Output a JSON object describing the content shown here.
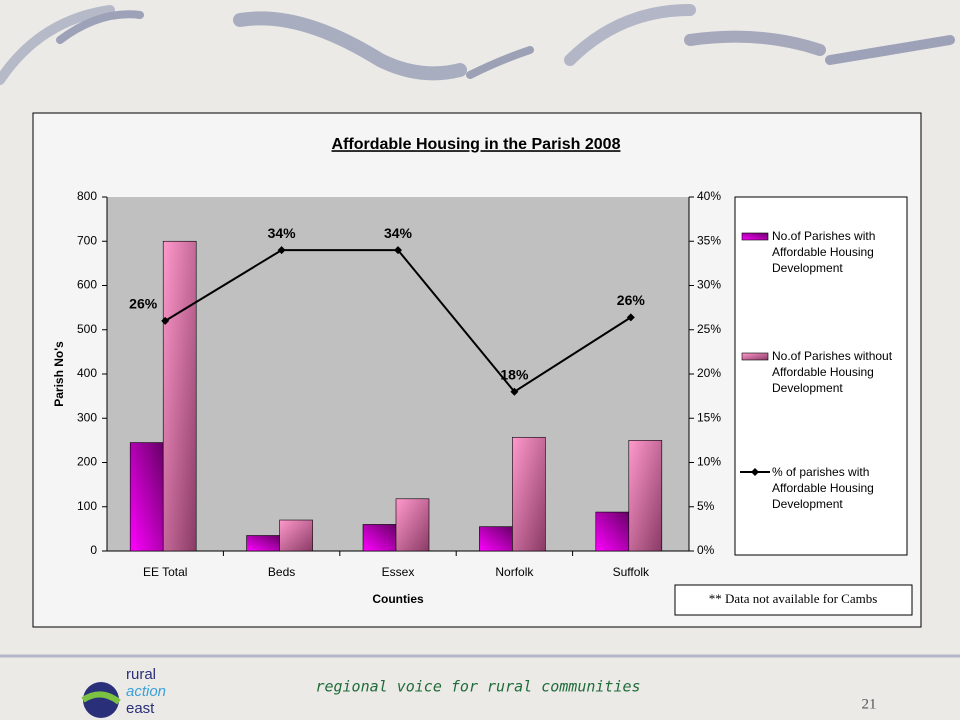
{
  "chart_data": {
    "type": "bar-line",
    "title": "Affordable Housing in the Parish 2008",
    "x_label": "Counties",
    "y_label": "Parish No's",
    "categories": [
      "EE Total",
      "Beds",
      "Essex",
      "Norfolk",
      "Suffolk"
    ],
    "series": [
      {
        "name": "No.of Parishes with Affordable Housing Development",
        "type": "bar",
        "color": "#cc00cc",
        "values": [
          245,
          35,
          60,
          55,
          88
        ]
      },
      {
        "name": "No.of Parishes without Affordable Housing Development",
        "type": "bar",
        "color": "#ff99cc",
        "values": [
          700,
          70,
          118,
          257,
          250
        ]
      },
      {
        "name": "% of parishes with Affordable Housing Development",
        "type": "line",
        "axis": "y2",
        "color": "#000000",
        "values": [
          26,
          34,
          34,
          18,
          26.4
        ],
        "value_labels": [
          "26%",
          "34%",
          "34%",
          "18%",
          "26%"
        ]
      }
    ],
    "ylim": [
      0,
      800
    ],
    "yticks": [
      0,
      100,
      200,
      300,
      400,
      500,
      600,
      700,
      800
    ],
    "y2lim": [
      0,
      40
    ],
    "y2ticks": [
      {
        "value": 0,
        "label": "0%"
      },
      {
        "value": 5,
        "label": "5%"
      },
      {
        "value": 10,
        "label": "10%"
      },
      {
        "value": 15,
        "label": "15%"
      },
      {
        "value": 20,
        "label": "20%"
      },
      {
        "value": 25,
        "label": "25%"
      },
      {
        "value": 30,
        "label": "30%"
      },
      {
        "value": 35,
        "label": "35%"
      },
      {
        "value": 40,
        "label": "40%"
      }
    ],
    "note": "** Data not available for Cambs",
    "legend": "right"
  },
  "footer": {
    "tagline": "regional voice for rural communities",
    "page_number": "21",
    "logo": [
      "rural",
      "action",
      "east"
    ]
  }
}
